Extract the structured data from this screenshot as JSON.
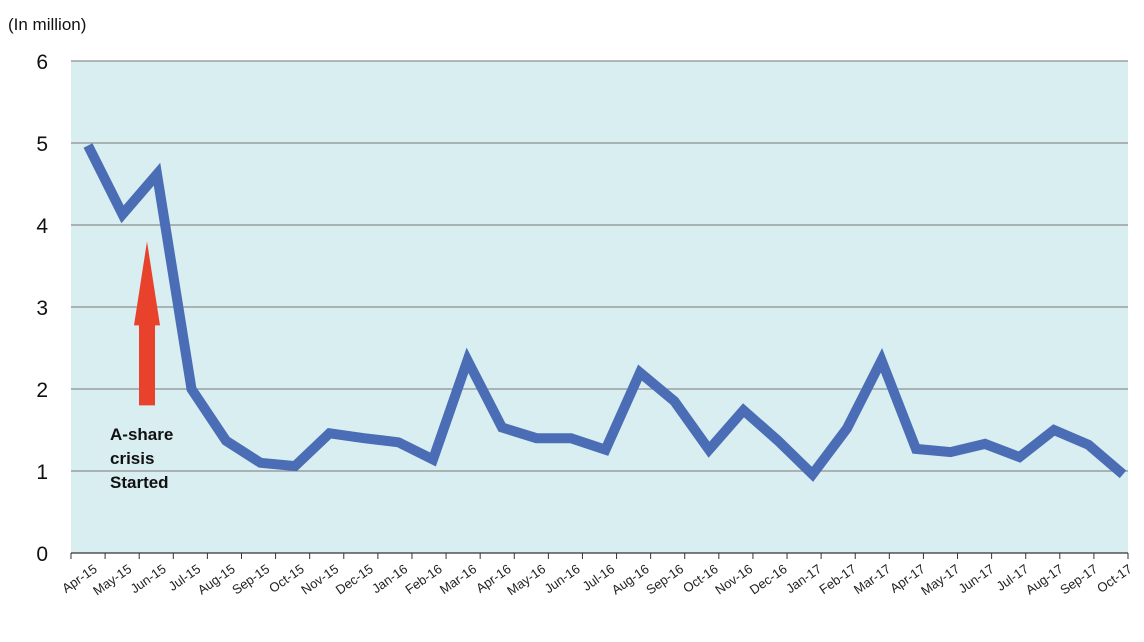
{
  "chart_data": {
    "type": "line",
    "unit_label": "(In million)",
    "x": [
      "Apr-15",
      "May-15",
      "Jun-15",
      "Jul-15",
      "Aug-15",
      "Sep-15",
      "Oct-15",
      "Nov-15",
      "Dec-15",
      "Jan-16",
      "Feb-16",
      "Mar-16",
      "Apr-16",
      "May-16",
      "Jun-16",
      "Jul-16",
      "Aug-16",
      "Sep-16",
      "Oct-16",
      "Nov-16",
      "Dec-16",
      "Jan-17",
      "Feb-17",
      "Mar-17",
      "Apr-17",
      "May-17",
      "Jun-17",
      "Jul-17",
      "Aug-17",
      "Sep-17",
      "Oct-17"
    ],
    "series": [
      {
        "values": [
          4.97,
          4.13,
          4.62,
          2.0,
          1.37,
          1.1,
          1.06,
          1.46,
          1.4,
          1.35,
          1.14,
          2.35,
          1.53,
          1.4,
          1.4,
          1.26,
          2.2,
          1.85,
          1.26,
          1.74,
          1.37,
          0.96,
          1.52,
          2.35,
          1.27,
          1.23,
          1.33,
          1.17,
          1.5,
          1.32,
          0.96
        ]
      }
    ],
    "yticks": [
      "0",
      "1",
      "2",
      "3",
      "4",
      "5",
      "6"
    ],
    "ylim": [
      0,
      6
    ],
    "grid": true,
    "colors": {
      "line": "#4a6db5",
      "plot_bg": "#d9eef1",
      "grid": "#8f8f8f",
      "arrow": "#e8412c"
    },
    "annotation": {
      "lines": [
        "A-share",
        "crisis",
        "Started"
      ],
      "at": "Jun-15",
      "arrow_from": 1.8,
      "arrow_to": 3.8
    }
  }
}
